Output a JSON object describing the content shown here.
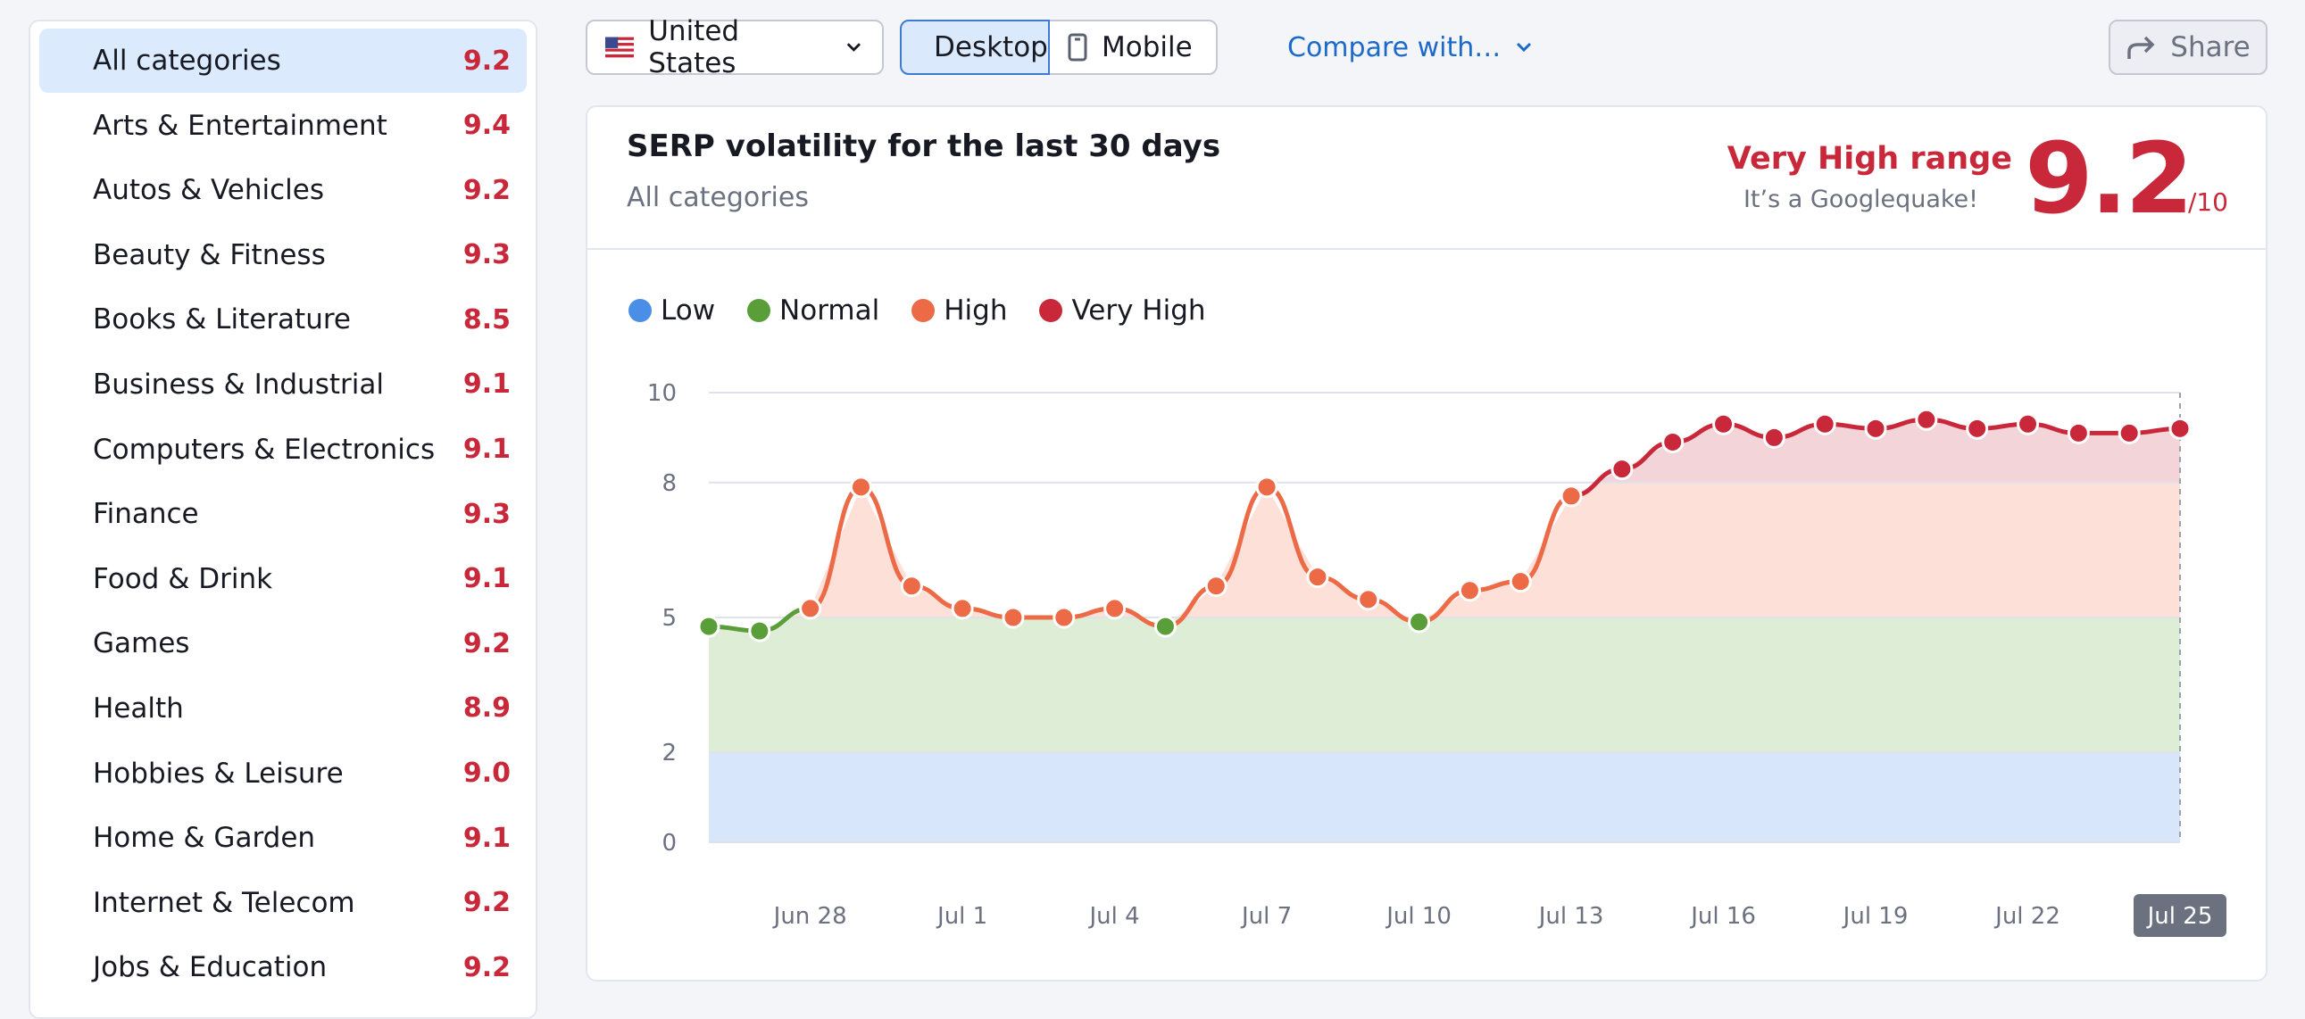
{
  "sidebar": {
    "items": [
      {
        "label": "All categories",
        "score": "9.2",
        "active": true
      },
      {
        "label": "Arts & Entertainment",
        "score": "9.4"
      },
      {
        "label": "Autos & Vehicles",
        "score": "9.2"
      },
      {
        "label": "Beauty & Fitness",
        "score": "9.3"
      },
      {
        "label": "Books & Literature",
        "score": "8.5"
      },
      {
        "label": "Business & Industrial",
        "score": "9.1"
      },
      {
        "label": "Computers & Electronics",
        "score": "9.1"
      },
      {
        "label": "Finance",
        "score": "9.3"
      },
      {
        "label": "Food & Drink",
        "score": "9.1"
      },
      {
        "label": "Games",
        "score": "9.2"
      },
      {
        "label": "Health",
        "score": "8.9"
      },
      {
        "label": "Hobbies & Leisure",
        "score": "9.0"
      },
      {
        "label": "Home & Garden",
        "score": "9.1"
      },
      {
        "label": "Internet & Telecom",
        "score": "9.2"
      },
      {
        "label": "Jobs & Education",
        "score": "9.2"
      }
    ]
  },
  "toolbar": {
    "country": "United States",
    "desktop_label": "Desktop",
    "mobile_label": "Mobile",
    "compare_label": "Compare with…",
    "share_label": "Share"
  },
  "card": {
    "title": "SERP volatility for the last 30 days",
    "subtitle": "All categories",
    "range_label": "Very High range",
    "range_sub": "It’s a Googlequake!",
    "score": "9.2",
    "score_max": "/10"
  },
  "colors": {
    "low": "#4a8ee8",
    "normal": "#5a9e3a",
    "high": "#ec6a45",
    "very_high": "#c9283a",
    "accent": "#1b6acb"
  },
  "chart_data": {
    "type": "line",
    "legend": [
      "Low",
      "Normal",
      "High",
      "Very High"
    ],
    "bands": [
      {
        "name": "Low",
        "from": 0,
        "to": 2
      },
      {
        "name": "Normal",
        "from": 2,
        "to": 5
      },
      {
        "name": "High",
        "from": 5,
        "to": 8
      },
      {
        "name": "Very High",
        "from": 8,
        "to": 10
      }
    ],
    "y_ticks": [
      "0",
      "2",
      "5",
      "8",
      "10"
    ],
    "ylim": [
      0,
      10
    ],
    "x_ticks": [
      "Jun 28",
      "Jul 1",
      "Jul 4",
      "Jul 7",
      "Jul 10",
      "Jul 13",
      "Jul 16",
      "Jul 19",
      "Jul 22",
      "Jul 25"
    ],
    "highlighted_x": "Jul 25",
    "series": [
      {
        "x": [
          "Jun 26",
          "Jun 27",
          "Jun 28",
          "Jun 29",
          "Jun 30",
          "Jul 1",
          "Jul 2",
          "Jul 3",
          "Jul 4",
          "Jul 5",
          "Jul 6",
          "Jul 7",
          "Jul 8",
          "Jul 9",
          "Jul 10",
          "Jul 11",
          "Jul 12",
          "Jul 13",
          "Jul 14",
          "Jul 15",
          "Jul 16",
          "Jul 17",
          "Jul 18",
          "Jul 19",
          "Jul 20",
          "Jul 21",
          "Jul 22",
          "Jul 23",
          "Jul 24",
          "Jul 25"
        ],
        "values": [
          4.8,
          4.7,
          5.2,
          7.9,
          5.7,
          5.2,
          5.0,
          5.0,
          5.2,
          4.8,
          5.7,
          7.9,
          5.9,
          5.4,
          4.9,
          5.6,
          5.8,
          7.7,
          8.3,
          8.9,
          9.3,
          9.0,
          9.3,
          9.2,
          9.4,
          9.2,
          9.3,
          9.1,
          9.1,
          9.2
        ]
      }
    ]
  }
}
